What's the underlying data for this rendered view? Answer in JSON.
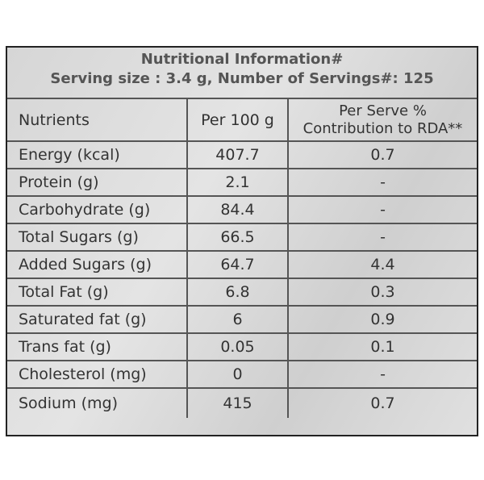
{
  "header": {
    "title": "Nutritional Information#",
    "serving": "Serving size : 3.4 g, Number of Servings#: 125"
  },
  "table": {
    "columns": [
      "Nutrients",
      "Per 100 g",
      [
        "Per Serve %",
        "Contribution to RDA**"
      ]
    ],
    "rows": [
      [
        "Energy (kcal)",
        "407.7",
        "0.7"
      ],
      [
        "Protein (g)",
        "2.1",
        "-"
      ],
      [
        "Carbohydrate (g)",
        "84.4",
        "-"
      ],
      [
        "Total Sugars (g)",
        "66.5",
        "-"
      ],
      [
        "Added Sugars (g)",
        "64.7",
        "4.4"
      ],
      [
        "Total Fat (g)",
        "6.8",
        "0.3"
      ],
      [
        "Saturated fat (g)",
        "6",
        "0.9"
      ],
      [
        "Trans fat (g)",
        "0.05",
        "0.1"
      ],
      [
        "Cholesterol (mg)",
        "0",
        "-"
      ],
      [
        "Sodium (mg)",
        "415",
        "0.7"
      ]
    ]
  }
}
